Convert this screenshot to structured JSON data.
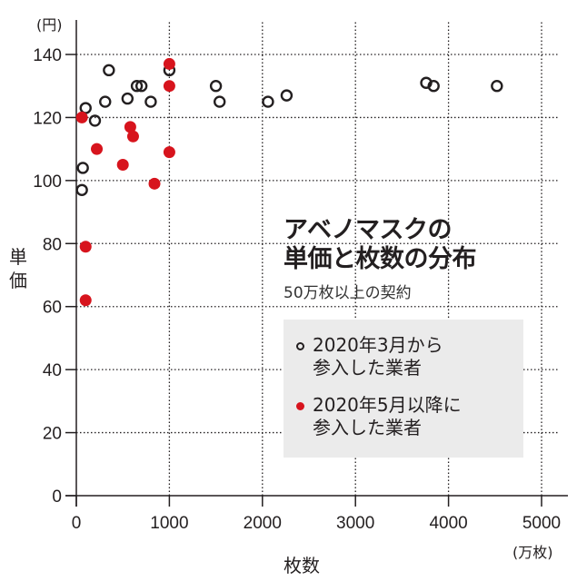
{
  "chart_data": {
    "type": "scatter",
    "title": "アベノマスクの単価と枚数の分布",
    "title_lines": [
      "アベノマスクの",
      "単価と枚数の分布"
    ],
    "subtitle": "50万枚以上の契約",
    "xlabel": "枚数",
    "x_unit": "(万枚)",
    "ylabel": "単価",
    "y_unit": "(円)",
    "xlim": [
      0,
      5000
    ],
    "ylim": [
      0,
      140
    ],
    "x_ticks": [
      0,
      1000,
      2000,
      3000,
      4000,
      5000
    ],
    "y_ticks": [
      0,
      20,
      40,
      60,
      80,
      100,
      120,
      140
    ],
    "grid": true,
    "legend_position": "right-middle",
    "series": [
      {
        "name": "2020年3月から参入した業者",
        "label_lines": [
          "2020年3月から",
          "参入した業者"
        ],
        "marker": "open-circle",
        "color": "#231f20",
        "points": [
          {
            "x": 60,
            "y": 97
          },
          {
            "x": 70,
            "y": 104
          },
          {
            "x": 100,
            "y": 123
          },
          {
            "x": 200,
            "y": 119
          },
          {
            "x": 310,
            "y": 125
          },
          {
            "x": 350,
            "y": 135
          },
          {
            "x": 550,
            "y": 126
          },
          {
            "x": 650,
            "y": 130
          },
          {
            "x": 700,
            "y": 130
          },
          {
            "x": 800,
            "y": 125
          },
          {
            "x": 1000,
            "y": 135
          },
          {
            "x": 1500,
            "y": 130
          },
          {
            "x": 1540,
            "y": 125
          },
          {
            "x": 2060,
            "y": 125
          },
          {
            "x": 2260,
            "y": 127
          },
          {
            "x": 3760,
            "y": 131
          },
          {
            "x": 3840,
            "y": 130
          },
          {
            "x": 4520,
            "y": 130
          }
        ]
      },
      {
        "name": "2020年5月以降に参入した業者",
        "label_lines": [
          "2020年5月以降に",
          "参入した業者"
        ],
        "marker": "filled-circle",
        "color": "#d7141d",
        "points": [
          {
            "x": 60,
            "y": 120
          },
          {
            "x": 100,
            "y": 79
          },
          {
            "x": 100,
            "y": 62
          },
          {
            "x": 220,
            "y": 110
          },
          {
            "x": 500,
            "y": 105
          },
          {
            "x": 580,
            "y": 117
          },
          {
            "x": 610,
            "y": 114
          },
          {
            "x": 840,
            "y": 99
          },
          {
            "x": 1000,
            "y": 137
          },
          {
            "x": 1000,
            "y": 130
          },
          {
            "x": 1000,
            "y": 109
          }
        ]
      }
    ]
  }
}
